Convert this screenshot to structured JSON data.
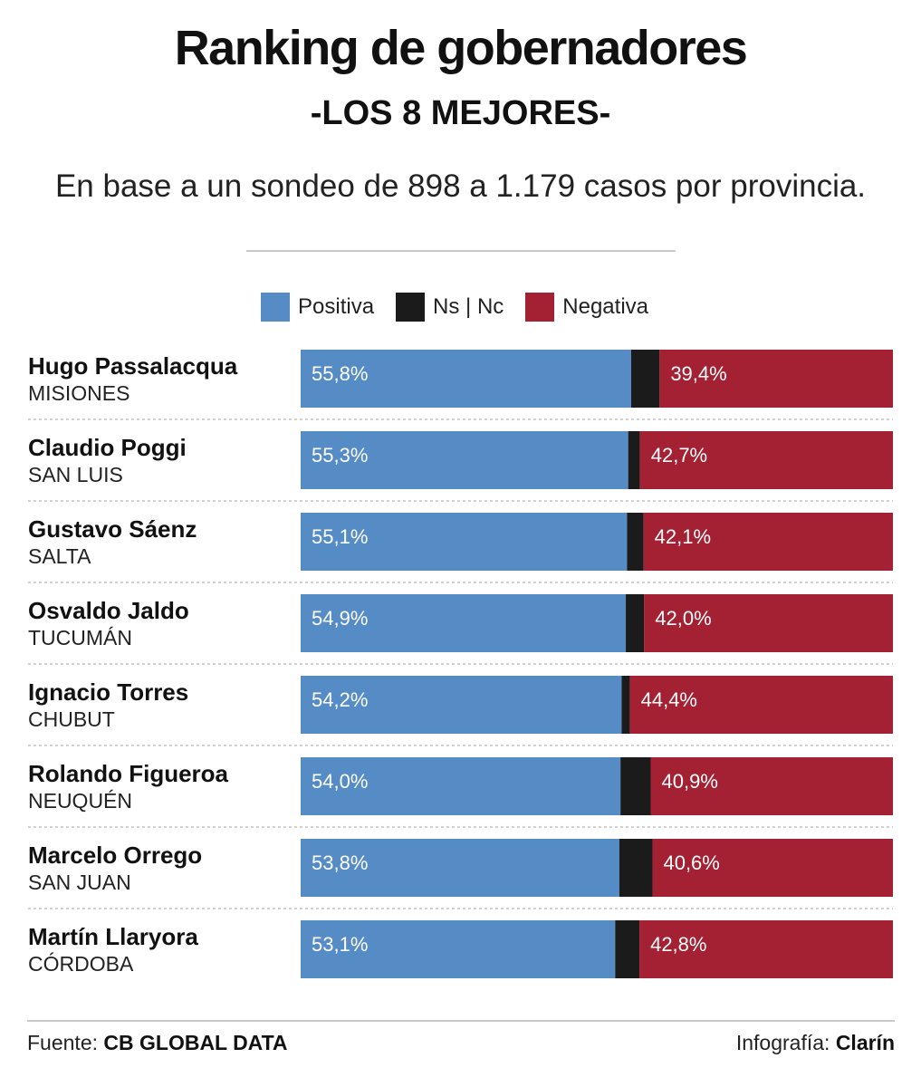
{
  "header": {
    "title": "Ranking de gobernadores",
    "subtitle": "-LOS 8 MEJORES-",
    "description": "En base a un sondeo de 898 a 1.179 casos por provincia."
  },
  "legend": [
    {
      "label": "Positiva",
      "color": "#568cc5"
    },
    {
      "label": "Ns | Nc",
      "color": "#1b1b1b"
    },
    {
      "label": "Negativa",
      "color": "#a42134"
    }
  ],
  "footer": {
    "source_label": "Fuente:",
    "source_value": "CB GLOBAL DATA",
    "credit_label": "Infografía:",
    "credit_value": "Clarín"
  },
  "chart_data": {
    "type": "bar",
    "orientation": "horizontal",
    "stacked": true,
    "title": "Ranking de gobernadores",
    "categories": [
      {
        "name": "Hugo Passalacqua",
        "province": "MISIONES"
      },
      {
        "name": "Claudio Poggi",
        "province": "SAN LUIS"
      },
      {
        "name": "Gustavo Sáenz",
        "province": "SALTA"
      },
      {
        "name": "Osvaldo Jaldo",
        "province": "TUCUMÁN"
      },
      {
        "name": "Ignacio Torres",
        "province": "CHUBUT"
      },
      {
        "name": "Rolando Figueroa",
        "province": "NEUQUÉN"
      },
      {
        "name": "Marcelo Orrego",
        "province": "SAN JUAN"
      },
      {
        "name": "Martín Llaryora",
        "province": "CÓRDOBA"
      }
    ],
    "series": [
      {
        "name": "Positiva",
        "color": "#568cc5",
        "values": [
          55.8,
          55.3,
          55.1,
          54.9,
          54.2,
          54.0,
          53.8,
          53.1
        ],
        "labels": [
          "55,8%",
          "55,3%",
          "55,1%",
          "54,9%",
          "54,2%",
          "54,0%",
          "53,8%",
          "53,1%"
        ]
      },
      {
        "name": "Ns | Nc",
        "color": "#1b1b1b",
        "values": [
          4.8,
          2.0,
          2.8,
          3.1,
          1.4,
          5.1,
          5.6,
          4.1
        ]
      },
      {
        "name": "Negativa",
        "color": "#a42134",
        "values": [
          39.4,
          42.7,
          42.1,
          42.0,
          44.4,
          40.9,
          40.6,
          42.8
        ],
        "labels": [
          "39,4%",
          "42,7%",
          "42,1%",
          "42,0%",
          "44,4%",
          "40,9%",
          "40,6%",
          "42,8%"
        ]
      }
    ],
    "xlim": [
      0,
      100
    ],
    "legend_position": "top"
  }
}
